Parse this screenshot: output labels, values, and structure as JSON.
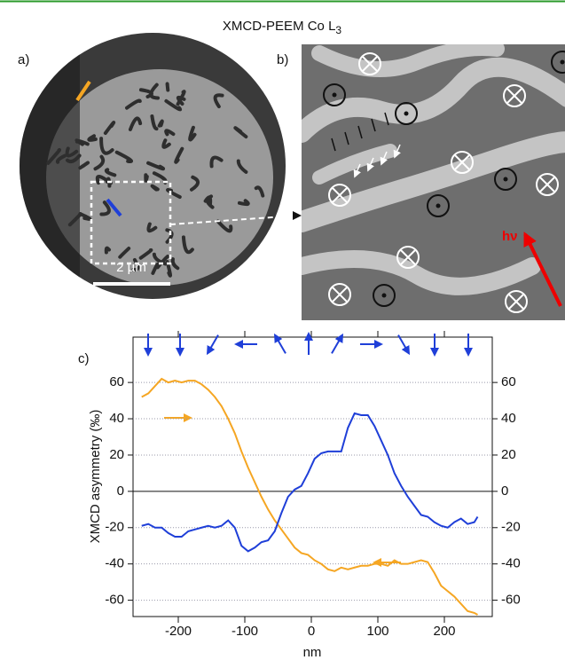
{
  "chart_data": {
    "type": "line",
    "title": "XMCD-PEEM Co L",
    "title_subscript": "3",
    "panel_labels": [
      "a)",
      "b)",
      "c)"
    ],
    "scale_bar": "2 µm",
    "beam_label": "hν",
    "y_label": "XMCD asymmetry (‰)",
    "x_label": "nm",
    "xlim": [
      -268,
      272
    ],
    "xticks": [
      -200,
      -100,
      0,
      100,
      200
    ],
    "ylim": [
      -69,
      85
    ],
    "yticks": [
      -60,
      -40,
      -20,
      0,
      20,
      40,
      60
    ],
    "grid": true,
    "x": [
      -255,
      -245,
      -235,
      -225,
      -215,
      -205,
      -195,
      -185,
      -175,
      -165,
      -155,
      -145,
      -135,
      -125,
      -115,
      -105,
      -95,
      -85,
      -75,
      -65,
      -55,
      -45,
      -35,
      -25,
      -15,
      -5,
      5,
      15,
      25,
      35,
      45,
      55,
      65,
      75,
      85,
      95,
      105,
      115,
      125,
      135,
      145,
      155,
      165,
      175,
      185,
      195,
      205,
      215,
      225,
      235,
      245,
      250
    ],
    "series": [
      {
        "color": "#f5a623",
        "values": [
          52,
          54,
          58,
          62,
          60,
          61,
          60,
          61,
          61,
          59,
          56,
          52,
          47,
          40,
          32,
          22,
          13,
          5,
          -3,
          -10,
          -16,
          -21,
          -26,
          -31,
          -34,
          -35,
          -38,
          -40,
          -43,
          -44,
          -42,
          -43,
          -42,
          -41,
          -41,
          -40,
          -40,
          -41,
          -38,
          -40,
          -40,
          -39,
          -38,
          -39,
          -45,
          -52,
          -55,
          -58,
          -62,
          -66,
          -67,
          -68
        ]
      },
      {
        "color": "#1f3fd8",
        "values": [
          -19,
          -18,
          -20,
          -20,
          -23,
          -25,
          -25,
          -22,
          -21,
          -20,
          -19,
          -20,
          -19,
          -16,
          -20,
          -30,
          -33,
          -31,
          -28,
          -27,
          -22,
          -12,
          -3,
          1,
          3,
          10,
          18,
          21,
          22,
          22,
          22,
          35,
          43,
          42,
          42,
          36,
          28,
          20,
          10,
          3,
          -3,
          -8,
          -13,
          -14,
          -17,
          -19,
          -20,
          -17,
          -15,
          -18,
          -17,
          -14
        ]
      }
    ]
  }
}
